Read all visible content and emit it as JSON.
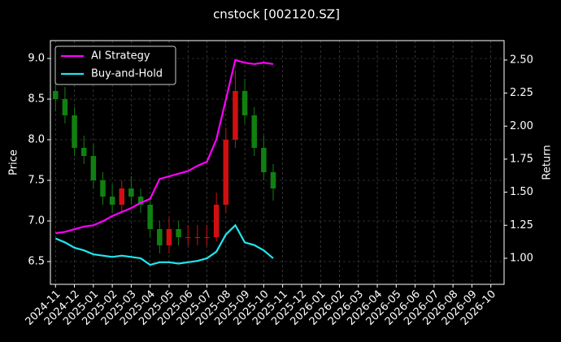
{
  "chart_data": {
    "type": "candlestick",
    "title": "cnstock [002120.SZ]",
    "ylabel": "Price",
    "y2label": "Return",
    "x": [
      0,
      0.5,
      1,
      1.5,
      2,
      2.5,
      3,
      3.5,
      4,
      4.5,
      5,
      5.5,
      6,
      6.5,
      7,
      7.5,
      8,
      8.5,
      9,
      9.5,
      10,
      10.5,
      11,
      11.5
    ],
    "candles": {
      "up_color": "#d01010",
      "down_color": "#108010",
      "open": [
        8.6,
        8.5,
        8.3,
        7.9,
        7.8,
        7.5,
        7.3,
        7.2,
        7.4,
        7.3,
        7.2,
        6.9,
        6.7,
        6.9,
        6.8,
        6.8,
        6.8,
        6.8,
        7.2,
        8.0,
        8.6,
        8.3,
        7.9,
        7.6
      ],
      "high": [
        8.75,
        8.65,
        8.4,
        8.05,
        7.95,
        7.6,
        7.45,
        7.5,
        7.55,
        7.4,
        7.3,
        7.0,
        7.05,
        7.0,
        6.95,
        6.95,
        6.95,
        7.35,
        8.15,
        8.85,
        8.75,
        8.4,
        8.05,
        7.7
      ],
      "low": [
        8.35,
        8.2,
        7.8,
        7.7,
        7.4,
        7.2,
        7.1,
        7.1,
        7.2,
        7.1,
        6.8,
        6.6,
        6.6,
        6.7,
        6.7,
        6.7,
        6.7,
        6.75,
        7.1,
        7.9,
        8.2,
        7.8,
        7.5,
        7.25
      ],
      "close": [
        8.5,
        8.3,
        7.9,
        7.8,
        7.5,
        7.3,
        7.2,
        7.4,
        7.3,
        7.2,
        6.9,
        6.7,
        6.9,
        6.8,
        6.8,
        6.8,
        6.8,
        7.2,
        8.0,
        8.6,
        8.3,
        7.9,
        7.6,
        7.4
      ]
    },
    "series": [
      {
        "name": "AI Strategy",
        "color": "#ff00ff",
        "axis": "y2",
        "values": [
          1.19,
          1.2,
          1.22,
          1.24,
          1.25,
          1.28,
          1.32,
          1.35,
          1.38,
          1.42,
          1.45,
          1.6,
          1.62,
          1.64,
          1.66,
          1.7,
          1.73,
          1.9,
          2.2,
          2.5,
          2.48,
          2.47,
          2.48,
          2.47
        ]
      },
      {
        "name": "Buy-and-Hold",
        "color": "#22e5ee",
        "axis": "y2",
        "values": [
          1.15,
          1.12,
          1.08,
          1.06,
          1.03,
          1.02,
          1.01,
          1.02,
          1.01,
          1.0,
          0.95,
          0.97,
          0.97,
          0.96,
          0.97,
          0.98,
          1.0,
          1.05,
          1.18,
          1.25,
          1.12,
          1.1,
          1.06,
          1.0
        ]
      }
    ],
    "xlim": [
      -0.27,
      23.7
    ],
    "xticks": [
      {
        "value": 0,
        "label": "2024-11"
      },
      {
        "value": 1,
        "label": "2024-12"
      },
      {
        "value": 2,
        "label": "2025-01"
      },
      {
        "value": 3,
        "label": "2025-02"
      },
      {
        "value": 4,
        "label": "2025-03"
      },
      {
        "value": 5,
        "label": "2025-04"
      },
      {
        "value": 6,
        "label": "2025-05"
      },
      {
        "value": 7,
        "label": "2025-06"
      },
      {
        "value": 8,
        "label": "2025-07"
      },
      {
        "value": 9,
        "label": "2025-08"
      },
      {
        "value": 10,
        "label": "2025-09"
      },
      {
        "value": 11,
        "label": "2025-10"
      },
      {
        "value": 12,
        "label": "2025-11"
      },
      {
        "value": 13,
        "label": "2025-12"
      },
      {
        "value": 14,
        "label": "2026-01"
      },
      {
        "value": 15,
        "label": "2026-02"
      },
      {
        "value": 16,
        "label": "2026-03"
      },
      {
        "value": 17,
        "label": "2026-04"
      },
      {
        "value": 18,
        "label": "2026-05"
      },
      {
        "value": 19,
        "label": "2026-06"
      },
      {
        "value": 20,
        "label": "2026-07"
      },
      {
        "value": 21,
        "label": "2026-08"
      },
      {
        "value": 22,
        "label": "2026-09"
      },
      {
        "value": 23,
        "label": "2026-10"
      }
    ],
    "ylim": [
      6.22,
      9.22
    ],
    "yticks": [
      6.5,
      {
        "value": 7,
        "label": "7.0"
      },
      7.5,
      {
        "value": 8,
        "label": "8.0"
      },
      8.5,
      {
        "value": 9,
        "label": "9.0"
      }
    ],
    "y2lim": [
      0.803,
      2.647
    ],
    "y2ticks": [
      {
        "value": 1,
        "label": "1.00"
      },
      1.25,
      {
        "value": 1.5,
        "label": "1.50"
      },
      1.75,
      {
        "value": 2,
        "label": "2.00"
      },
      2.25,
      {
        "value": 2.5,
        "label": "2.50"
      }
    ],
    "grid": true,
    "legend": "upper left"
  }
}
